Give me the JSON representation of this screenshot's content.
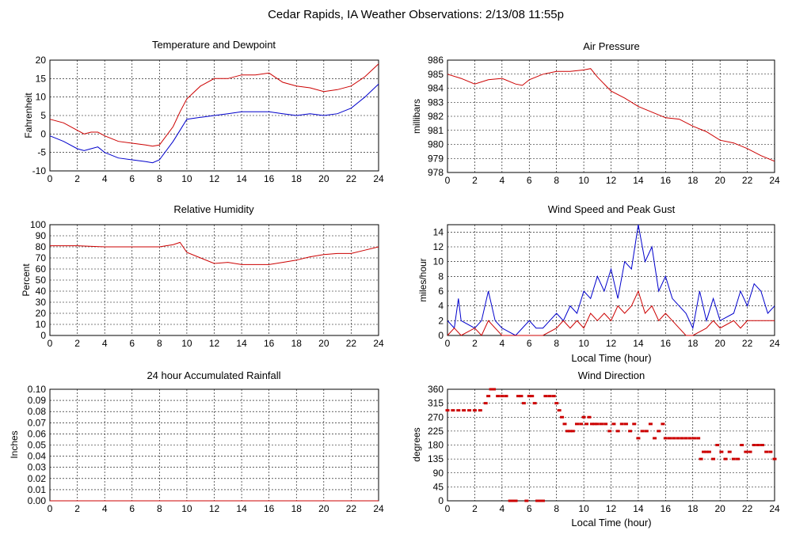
{
  "page_title": "Cedar Rapids, IA Weather Observations: 2/13/08 11:55p",
  "colors": {
    "red": "#cc0000",
    "blue": "#0000cc",
    "grid": "#000000"
  },
  "chart_data": [
    {
      "id": "temp",
      "type": "line",
      "title": "Temperature and Dewpoint",
      "xlabel": "",
      "ylabel": "Fahrenheit",
      "xlim": [
        0,
        24
      ],
      "ylim": [
        -10,
        20
      ],
      "xticks": [
        0,
        2,
        4,
        6,
        8,
        10,
        12,
        14,
        16,
        18,
        20,
        22,
        24
      ],
      "yticks": [
        -10,
        -5,
        0,
        5,
        10,
        15,
        20
      ],
      "series": [
        {
          "color": "#cc0000",
          "x": [
            0,
            1,
            2,
            2.5,
            3,
            3.5,
            4,
            5,
            6,
            7,
            7.5,
            8,
            9,
            9.5,
            10,
            11,
            12,
            13,
            14,
            15,
            16,
            17,
            18,
            19,
            20,
            21,
            22,
            23,
            24
          ],
          "y": [
            4,
            3,
            1,
            0,
            0.5,
            0.5,
            -0.5,
            -2,
            -2.5,
            -3,
            -3.3,
            -3,
            2,
            6,
            9.5,
            13,
            15,
            15,
            16,
            16,
            16.5,
            14,
            13,
            12.5,
            11.5,
            12,
            13,
            15.5,
            19
          ]
        },
        {
          "color": "#0000cc",
          "x": [
            0,
            1,
            2,
            2.5,
            3,
            3.5,
            4,
            5,
            6,
            7,
            7.5,
            8,
            9,
            9.5,
            10,
            11,
            12,
            13,
            14,
            15,
            16,
            17,
            18,
            19,
            20,
            21,
            22,
            23,
            24
          ],
          "y": [
            -0.5,
            -2,
            -4,
            -4.5,
            -4,
            -3.5,
            -5,
            -6.5,
            -7,
            -7.5,
            -7.8,
            -7,
            -2,
            1,
            4,
            4.5,
            5,
            5.5,
            6,
            6,
            6,
            5.5,
            5,
            5.5,
            5,
            5.5,
            7,
            10,
            13.5
          ]
        }
      ]
    },
    {
      "id": "pressure",
      "type": "line",
      "title": "Air Pressure",
      "xlabel": "",
      "ylabel": "millibars",
      "xlim": [
        0,
        24
      ],
      "ylim": [
        978,
        986
      ],
      "xticks": [
        0,
        2,
        4,
        6,
        8,
        10,
        12,
        14,
        16,
        18,
        20,
        22,
        24
      ],
      "yticks": [
        978,
        979,
        980,
        981,
        982,
        983,
        984,
        985,
        986
      ],
      "series": [
        {
          "color": "#cc0000",
          "x": [
            0,
            1,
            2,
            3,
            4,
            5,
            5.5,
            6,
            7,
            8,
            9,
            10,
            10.5,
            11,
            12,
            13,
            14,
            15,
            16,
            17,
            18,
            19,
            20,
            21,
            22,
            23,
            24
          ],
          "y": [
            985,
            984.7,
            984.3,
            984.6,
            984.7,
            984.3,
            984.2,
            984.6,
            985,
            985.2,
            985.2,
            985.3,
            985.4,
            984.8,
            983.8,
            983.3,
            982.7,
            982.3,
            981.9,
            981.8,
            981.3,
            980.9,
            980.3,
            980.1,
            979.7,
            979.2,
            978.8
          ]
        }
      ]
    },
    {
      "id": "humidity",
      "type": "line",
      "title": "Relative Humidity",
      "xlabel": "",
      "ylabel": "Percent",
      "xlim": [
        0,
        24
      ],
      "ylim": [
        0,
        100
      ],
      "xticks": [
        0,
        2,
        4,
        6,
        8,
        10,
        12,
        14,
        16,
        18,
        20,
        22,
        24
      ],
      "yticks": [
        0,
        10,
        20,
        30,
        40,
        50,
        60,
        70,
        80,
        90,
        100
      ],
      "series": [
        {
          "color": "#cc0000",
          "x": [
            0,
            2,
            4,
            6,
            8,
            9,
            9.5,
            10,
            11,
            12,
            13,
            14,
            15,
            16,
            17,
            18,
            19,
            20,
            21,
            22,
            23,
            24
          ],
          "y": [
            81,
            81,
            80,
            80,
            80,
            82,
            84,
            75,
            70,
            65,
            66,
            64,
            64,
            64,
            66,
            68,
            71,
            73,
            74,
            74,
            77,
            80
          ]
        }
      ]
    },
    {
      "id": "wind",
      "type": "line",
      "title": "Wind Speed and Peak Gust",
      "xlabel": "Local Time (hour)",
      "ylabel": "miles/hour",
      "xlim": [
        0,
        24
      ],
      "ylim": [
        0,
        15
      ],
      "xticks": [
        0,
        2,
        4,
        6,
        8,
        10,
        12,
        14,
        16,
        18,
        20,
        22,
        24
      ],
      "yticks": [
        0,
        2,
        4,
        6,
        8,
        10,
        12,
        14
      ],
      "series": [
        {
          "color": "#0000cc",
          "x": [
            0,
            0.5,
            0.8,
            1,
            2,
            2.5,
            3,
            3.5,
            4,
            5,
            6,
            6.5,
            7,
            7.5,
            8,
            8.5,
            9,
            9.5,
            10,
            10.5,
            11,
            11.5,
            12,
            12.5,
            13,
            13.5,
            14,
            14.5,
            15,
            15.5,
            16,
            16.5,
            17,
            17.5,
            18,
            18.5,
            19,
            19.5,
            20,
            21,
            21.5,
            22,
            22.5,
            23,
            23.5,
            24
          ],
          "y": [
            2,
            1,
            5,
            2,
            1,
            2,
            6,
            2,
            1,
            0,
            2,
            1,
            1,
            2,
            3,
            2,
            4,
            3,
            6,
            5,
            8,
            6,
            9,
            5,
            10,
            9,
            15,
            10,
            12,
            6,
            8,
            5,
            4,
            3,
            1,
            6,
            2,
            5,
            2,
            3,
            6,
            4,
            7,
            6,
            3,
            4
          ]
        },
        {
          "color": "#cc0000",
          "x": [
            0,
            0.5,
            1,
            2,
            2.5,
            3,
            3.5,
            4,
            5,
            6,
            7,
            8,
            8.5,
            9,
            9.5,
            10,
            10.5,
            11,
            11.5,
            12,
            12.5,
            13,
            13.5,
            14,
            14.5,
            15,
            15.5,
            16,
            16.5,
            17,
            17.5,
            18,
            19,
            19.5,
            20,
            21,
            21.5,
            22,
            23,
            24
          ],
          "y": [
            0,
            1,
            0,
            1,
            0,
            2,
            1,
            0,
            0,
            0,
            0,
            1,
            2,
            1,
            2,
            1,
            3,
            2,
            3,
            2,
            4,
            3,
            4,
            6,
            3,
            4,
            2,
            3,
            2,
            1,
            0,
            0,
            1,
            2,
            1,
            2,
            1,
            2,
            2,
            2
          ]
        }
      ]
    },
    {
      "id": "rain",
      "type": "line",
      "title": "24 hour Accumulated Rainfall",
      "xlabel": "",
      "ylabel": "Inches",
      "xlim": [
        0,
        24
      ],
      "ylim": [
        0,
        0.1
      ],
      "xticks": [
        0,
        2,
        4,
        6,
        8,
        10,
        12,
        14,
        16,
        18,
        20,
        22,
        24
      ],
      "yticks": [
        0,
        0.01,
        0.02,
        0.03,
        0.04,
        0.05,
        0.06,
        0.07,
        0.08,
        0.09,
        0.1
      ],
      "ytick_labels": [
        "0.00",
        "0.01",
        "0.02",
        "0.03",
        "0.04",
        "0.05",
        "0.06",
        "0.07",
        "0.08",
        "0.09",
        "0.10"
      ],
      "series": [
        {
          "color": "#cc0000",
          "x": [
            0,
            24
          ],
          "y": [
            0,
            0
          ]
        }
      ]
    },
    {
      "id": "direction",
      "type": "scatter",
      "title": "Wind Direction",
      "xlabel": "Local Time (hour)",
      "ylabel": "degrees",
      "xlim": [
        0,
        24
      ],
      "ylim": [
        0,
        360
      ],
      "xticks": [
        0,
        2,
        4,
        6,
        8,
        10,
        12,
        14,
        16,
        18,
        20,
        22,
        24
      ],
      "yticks": [
        0,
        45,
        90,
        135,
        180,
        225,
        270,
        315,
        360
      ],
      "series": [
        {
          "color": "#cc0000",
          "x": [
            0,
            0.4,
            0.8,
            1.2,
            1.6,
            2.0,
            2.4,
            2.8,
            3.0,
            3.2,
            3.4,
            3.7,
            4.0,
            4.3,
            4.6,
            4.8,
            5.0,
            5.2,
            5.4,
            5.6,
            5.8,
            6.0,
            6.2,
            6.4,
            6.6,
            6.8,
            7.0,
            7.2,
            7.5,
            7.8,
            8.0,
            8.2,
            8.4,
            8.6,
            8.8,
            9.0,
            9.2,
            9.5,
            9.8,
            10.0,
            10.2,
            10.4,
            10.6,
            10.8,
            11.0,
            11.3,
            11.6,
            11.9,
            12.2,
            12.5,
            12.8,
            13.1,
            13.4,
            13.7,
            14.0,
            14.3,
            14.6,
            14.9,
            15.2,
            15.5,
            15.8,
            16.0,
            16.3,
            16.6,
            16.9,
            17.2,
            17.5,
            17.8,
            18.1,
            18.4,
            18.6,
            18.8,
            19.0,
            19.2,
            19.5,
            19.8,
            20.1,
            20.4,
            20.7,
            21.0,
            21.3,
            21.6,
            21.9,
            22.2,
            22.5,
            22.8,
            23.1,
            23.4,
            23.7,
            24.0
          ],
          "y": [
            292,
            292,
            292,
            292,
            292,
            292,
            292,
            315,
            338,
            360,
            360,
            338,
            338,
            338,
            0,
            0,
            0,
            338,
            338,
            315,
            0,
            338,
            338,
            315,
            0,
            0,
            0,
            338,
            338,
            338,
            315,
            292,
            270,
            248,
            225,
            225,
            225,
            248,
            248,
            270,
            248,
            270,
            248,
            248,
            248,
            248,
            248,
            225,
            248,
            225,
            248,
            248,
            225,
            248,
            202,
            225,
            225,
            248,
            202,
            225,
            248,
            202,
            202,
            202,
            202,
            202,
            202,
            202,
            202,
            202,
            135,
            158,
            158,
            158,
            135,
            180,
            158,
            135,
            158,
            135,
            135,
            180,
            158,
            158,
            180,
            180,
            180,
            158,
            158,
            135
          ]
        }
      ]
    }
  ]
}
